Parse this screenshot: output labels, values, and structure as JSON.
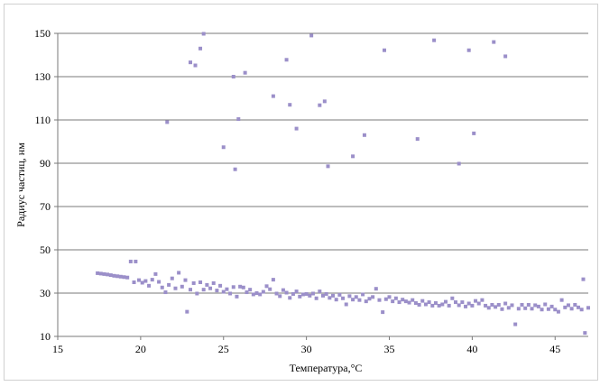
{
  "chart_data": {
    "type": "scatter",
    "title": "",
    "xlabel": "Температура,°С",
    "ylabel": "Радиус частиц, нм",
    "xlim": [
      15,
      47
    ],
    "ylim": [
      10,
      150
    ],
    "x_ticks": [
      "15",
      "20",
      "25",
      "30",
      "35",
      "40",
      "45"
    ],
    "y_ticks": [
      "10",
      "30",
      "50",
      "70",
      "90",
      "110",
      "130",
      "150"
    ],
    "grid": "horizontal",
    "legend": "none",
    "marker_color": "#9b8fc9",
    "series": [
      {
        "values": [
          [
            17.4,
            39.2
          ],
          [
            17.6,
            39.0
          ],
          [
            17.8,
            38.8
          ],
          [
            18.0,
            38.6
          ],
          [
            18.2,
            38.3
          ],
          [
            18.4,
            38.0
          ],
          [
            18.6,
            37.8
          ],
          [
            18.8,
            37.6
          ],
          [
            19.0,
            37.4
          ],
          [
            19.2,
            37.2
          ],
          [
            19.4,
            44.6
          ],
          [
            19.6,
            35.0
          ],
          [
            19.7,
            44.6
          ],
          [
            19.9,
            36.0
          ],
          [
            20.1,
            34.8
          ],
          [
            20.3,
            35.6
          ],
          [
            20.5,
            33.4
          ],
          [
            20.7,
            36.2
          ],
          [
            20.9,
            38.8
          ],
          [
            21.1,
            35.2
          ],
          [
            21.3,
            32.6
          ],
          [
            21.5,
            30.4
          ],
          [
            21.7,
            33.8
          ],
          [
            21.9,
            36.8
          ],
          [
            22.1,
            32.2
          ],
          [
            22.3,
            39.4
          ],
          [
            22.5,
            33.0
          ],
          [
            22.7,
            36.0
          ],
          [
            22.8,
            21.4
          ],
          [
            23.0,
            31.6
          ],
          [
            23.2,
            34.6
          ],
          [
            23.4,
            29.8
          ],
          [
            23.6,
            35.0
          ],
          [
            23.8,
            31.6
          ],
          [
            24.0,
            33.8
          ],
          [
            24.2,
            32.2
          ],
          [
            24.4,
            34.6
          ],
          [
            24.6,
            31.2
          ],
          [
            24.8,
            33.4
          ],
          [
            25.0,
            30.6
          ],
          [
            25.2,
            31.8
          ],
          [
            25.4,
            29.8
          ],
          [
            25.6,
            32.8
          ],
          [
            25.8,
            28.4
          ],
          [
            26.0,
            33.0
          ],
          [
            26.2,
            32.6
          ],
          [
            26.4,
            30.4
          ],
          [
            26.6,
            31.6
          ],
          [
            26.8,
            29.4
          ],
          [
            27.0,
            30.0
          ],
          [
            27.2,
            29.4
          ],
          [
            27.4,
            30.6
          ],
          [
            27.6,
            33.2
          ],
          [
            27.8,
            31.8
          ],
          [
            28.0,
            36.2
          ],
          [
            28.2,
            29.8
          ],
          [
            28.4,
            28.6
          ],
          [
            28.6,
            31.4
          ],
          [
            28.8,
            30.2
          ],
          [
            29.0,
            27.8
          ],
          [
            29.2,
            29.6
          ],
          [
            29.4,
            30.8
          ],
          [
            29.6,
            28.4
          ],
          [
            29.8,
            29.4
          ],
          [
            30.0,
            29.6
          ],
          [
            30.2,
            28.8
          ],
          [
            30.4,
            29.8
          ],
          [
            30.6,
            27.6
          ],
          [
            30.8,
            30.8
          ],
          [
            31.0,
            28.8
          ],
          [
            31.2,
            29.6
          ],
          [
            31.4,
            27.8
          ],
          [
            31.6,
            28.8
          ],
          [
            31.8,
            27.0
          ],
          [
            32.0,
            29.2
          ],
          [
            32.2,
            27.6
          ],
          [
            32.4,
            24.8
          ],
          [
            32.6,
            28.6
          ],
          [
            32.8,
            27.0
          ],
          [
            33.0,
            28.2
          ],
          [
            33.2,
            26.8
          ],
          [
            33.4,
            29.4
          ],
          [
            33.6,
            26.2
          ],
          [
            33.8,
            27.4
          ],
          [
            34.0,
            28.2
          ],
          [
            34.2,
            32.0
          ],
          [
            34.4,
            26.8
          ],
          [
            34.6,
            21.2
          ],
          [
            34.8,
            27.2
          ],
          [
            35.0,
            28.2
          ],
          [
            35.2,
            26.2
          ],
          [
            35.4,
            27.6
          ],
          [
            35.6,
            25.8
          ],
          [
            35.8,
            27.0
          ],
          [
            36.0,
            26.2
          ],
          [
            36.2,
            25.6
          ],
          [
            36.4,
            26.8
          ],
          [
            36.6,
            25.4
          ],
          [
            36.8,
            24.6
          ],
          [
            37.0,
            26.4
          ],
          [
            37.2,
            24.8
          ],
          [
            37.4,
            25.8
          ],
          [
            37.6,
            24.2
          ],
          [
            37.8,
            25.4
          ],
          [
            38.0,
            24.2
          ],
          [
            38.2,
            24.8
          ],
          [
            38.4,
            26.0
          ],
          [
            38.6,
            24.2
          ],
          [
            38.8,
            27.6
          ],
          [
            39.0,
            25.8
          ],
          [
            39.2,
            24.4
          ],
          [
            39.4,
            25.8
          ],
          [
            39.6,
            23.8
          ],
          [
            39.8,
            25.2
          ],
          [
            40.0,
            24.2
          ],
          [
            40.2,
            26.4
          ],
          [
            40.4,
            25.2
          ],
          [
            40.6,
            26.8
          ],
          [
            40.8,
            24.2
          ],
          [
            41.0,
            23.2
          ],
          [
            41.2,
            24.6
          ],
          [
            41.4,
            23.6
          ],
          [
            41.6,
            24.6
          ],
          [
            41.8,
            22.6
          ],
          [
            42.0,
            25.2
          ],
          [
            42.2,
            23.2
          ],
          [
            42.4,
            24.4
          ],
          [
            42.6,
            15.6
          ],
          [
            42.8,
            22.8
          ],
          [
            43.0,
            24.6
          ],
          [
            43.2,
            23.0
          ],
          [
            43.4,
            24.6
          ],
          [
            43.6,
            22.8
          ],
          [
            43.8,
            24.4
          ],
          [
            44.0,
            23.8
          ],
          [
            44.2,
            22.4
          ],
          [
            44.4,
            24.8
          ],
          [
            44.6,
            22.6
          ],
          [
            44.8,
            23.8
          ],
          [
            45.0,
            22.4
          ],
          [
            45.2,
            21.4
          ],
          [
            45.4,
            26.8
          ],
          [
            45.6,
            23.4
          ],
          [
            45.8,
            24.4
          ],
          [
            46.0,
            22.8
          ],
          [
            46.2,
            24.6
          ],
          [
            46.4,
            23.4
          ],
          [
            46.6,
            22.4
          ],
          [
            46.7,
            36.4
          ],
          [
            46.8,
            11.6
          ],
          [
            47.0,
            23.2
          ],
          [
            21.6,
            109.0
          ],
          [
            23.0,
            136.6
          ],
          [
            23.3,
            135.2
          ],
          [
            23.6,
            143.0
          ],
          [
            23.8,
            149.8
          ],
          [
            25.0,
            97.4
          ],
          [
            25.6,
            130.0
          ],
          [
            25.7,
            87.2
          ],
          [
            25.9,
            110.4
          ],
          [
            26.3,
            131.8
          ],
          [
            28.0,
            121.0
          ],
          [
            28.8,
            137.8
          ],
          [
            29.0,
            117.0
          ],
          [
            29.4,
            106.0
          ],
          [
            30.3,
            149.0
          ],
          [
            30.8,
            116.8
          ],
          [
            31.1,
            118.6
          ],
          [
            31.3,
            88.6
          ],
          [
            32.8,
            93.2
          ],
          [
            33.5,
            103.0
          ],
          [
            34.7,
            142.2
          ],
          [
            36.7,
            101.2
          ],
          [
            37.7,
            146.8
          ],
          [
            39.2,
            89.8
          ],
          [
            39.8,
            142.2
          ],
          [
            40.1,
            103.8
          ],
          [
            41.3,
            146.0
          ],
          [
            42.0,
            139.4
          ]
        ]
      }
    ]
  }
}
